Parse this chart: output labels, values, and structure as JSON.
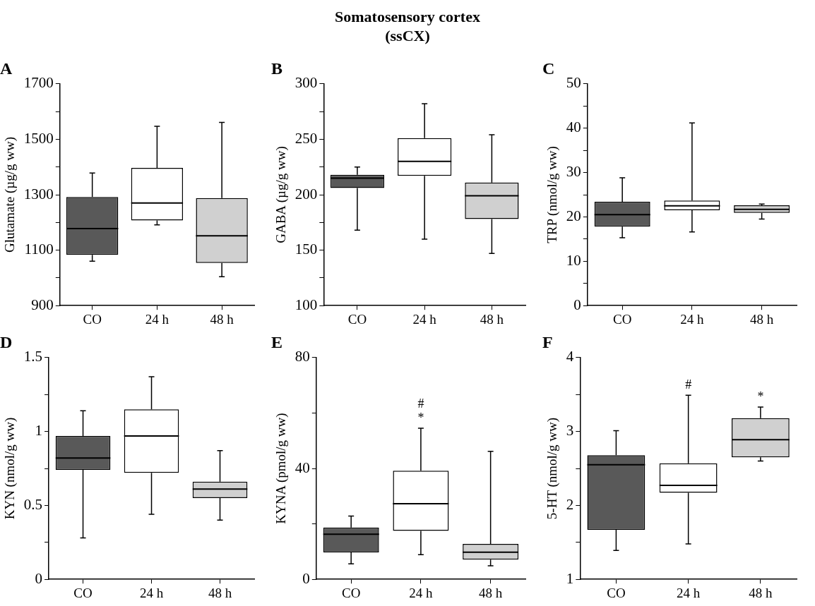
{
  "chart_data": [
    {
      "type": "other",
      "title": "Somatosensory cortex",
      "subtitle": "(ssCX)"
    },
    {
      "type": "box",
      "title": "A",
      "ylabel": "Glutamate (µg/g ww)",
      "categories": [
        "CO",
        "24 h",
        "48 h"
      ],
      "colors": [
        "#595959",
        "#ffffff",
        "#d0d0d0"
      ],
      "boxes": [
        {
          "low": 1060,
          "q1": 1083,
          "median": 1178,
          "q3": 1292,
          "high": 1378
        },
        {
          "low": 1191,
          "q1": 1207,
          "median": 1270,
          "q3": 1397,
          "high": 1547
        },
        {
          "low": 1004,
          "q1": 1054,
          "median": 1152,
          "q3": 1288,
          "high": 1561
        }
      ],
      "ylim": [
        900,
        1700
      ],
      "yticks": [
        900,
        {
          "value": 1000,
          "label": null
        },
        1100,
        {
          "value": 1200,
          "label": null
        },
        1300,
        {
          "value": 1400,
          "label": null
        },
        1500,
        {
          "value": 1600,
          "label": null
        },
        1700
      ]
    },
    {
      "type": "box",
      "title": "B",
      "ylabel": "GABA (µg/g ww)",
      "categories": [
        "CO",
        "24 h",
        "48 h"
      ],
      "colors": [
        "#595959",
        "#ffffff",
        "#d0d0d0"
      ],
      "boxes": [
        {
          "low": 168,
          "q1": 206,
          "median": 215,
          "q3": 218,
          "high": 225
        },
        {
          "low": 160,
          "q1": 217,
          "median": 230,
          "q3": 251,
          "high": 282
        },
        {
          "low": 147,
          "q1": 178,
          "median": 199,
          "q3": 211,
          "high": 254
        }
      ],
      "ylim": [
        100,
        300
      ],
      "yticks": [
        100,
        {
          "value": 125,
          "label": null
        },
        150,
        {
          "value": 175,
          "label": null
        },
        200,
        {
          "value": 225,
          "label": null
        },
        250,
        {
          "value": 275,
          "label": null
        },
        300
      ]
    },
    {
      "type": "box",
      "title": "C",
      "ylabel": "TRP (nmol/g ww)",
      "categories": [
        "CO",
        "24 h",
        "48 h"
      ],
      "colors": [
        "#595959",
        "#ffffff",
        "#d0d0d0"
      ],
      "boxes": [
        {
          "low": 15.3,
          "q1": 17.8,
          "median": 20.5,
          "q3": 23.4,
          "high": 28.8
        },
        {
          "low": 16.6,
          "q1": 21.5,
          "median": 22.5,
          "q3": 23.7,
          "high": 41.2
        },
        {
          "low": 19.5,
          "q1": 20.9,
          "median": 21.7,
          "q3": 22.6,
          "high": 22.9
        }
      ],
      "ylim": [
        0,
        50
      ],
      "yticks": [
        0,
        {
          "value": 5,
          "label": null
        },
        10,
        {
          "value": 15,
          "label": null
        },
        20,
        {
          "value": 25,
          "label": null
        },
        30,
        {
          "value": 35,
          "label": null
        },
        40,
        {
          "value": 45,
          "label": null
        },
        50
      ]
    },
    {
      "type": "box",
      "title": "D",
      "ylabel": "KYN (nmol/g ww)",
      "categories": [
        "CO",
        "24 h",
        "48 h"
      ],
      "colors": [
        "#595959",
        "#ffffff",
        "#d0d0d0"
      ],
      "boxes": [
        {
          "low": 0.28,
          "q1": 0.74,
          "median": 0.82,
          "q3": 0.97,
          "high": 1.14
        },
        {
          "low": 0.44,
          "q1": 0.72,
          "median": 0.97,
          "q3": 1.15,
          "high": 1.37
        },
        {
          "low": 0.4,
          "q1": 0.55,
          "median": 0.61,
          "q3": 0.66,
          "high": 0.87
        }
      ],
      "ylim": [
        0,
        1.5
      ],
      "yticks": [
        0,
        {
          "value": 0.25,
          "label": null
        },
        0.5,
        {
          "value": 0.75,
          "label": null
        },
        1,
        {
          "value": 1.25,
          "label": null
        },
        1.5
      ]
    },
    {
      "type": "box",
      "title": "E",
      "ylabel": "KYNA (pmol/g ww)",
      "categories": [
        "CO",
        "24 h",
        "48 h"
      ],
      "colors": [
        "#595959",
        "#ffffff",
        "#d0d0d0"
      ],
      "boxes": [
        {
          "low": 5.6,
          "q1": 9.7,
          "median": 16.3,
          "q3": 18.7,
          "high": 22.8
        },
        {
          "low": 8.9,
          "q1": 17.5,
          "median": 27.3,
          "q3": 39.2,
          "high": 54.5
        },
        {
          "low": 4.9,
          "q1": 7.1,
          "median": 9.8,
          "q3": 12.8,
          "high": 46.2
        }
      ],
      "ylim": [
        0,
        80
      ],
      "yticks": [
        0,
        {
          "value": 20,
          "label": null
        },
        40,
        {
          "value": 60,
          "label": null
        },
        80
      ],
      "annotations": [
        {
          "text": "*",
          "x": "24 h",
          "y": 54.5
        },
        {
          "text": "#",
          "x": "24 h",
          "y": 54.5
        }
      ]
    },
    {
      "type": "box",
      "title": "F",
      "ylabel": "5-HT (nmol/g ww)",
      "categories": [
        "CO",
        "24 h",
        "48 h"
      ],
      "colors": [
        "#595959",
        "#ffffff",
        "#d0d0d0"
      ],
      "boxes": [
        {
          "low": 1.39,
          "q1": 1.67,
          "median": 2.55,
          "q3": 2.68,
          "high": 3.01
        },
        {
          "low": 1.48,
          "q1": 2.17,
          "median": 2.27,
          "q3": 2.57,
          "high": 3.49
        },
        {
          "low": 2.6,
          "q1": 2.65,
          "median": 2.89,
          "q3": 3.18,
          "high": 3.33
        }
      ],
      "ylim": [
        1,
        4
      ],
      "yticks": [
        1,
        {
          "value": 1.5,
          "label": null
        },
        2,
        {
          "value": 2.5,
          "label": null
        },
        3,
        {
          "value": 3.5,
          "label": null
        },
        4
      ],
      "annotations": [
        {
          "text": "#",
          "x": "24 h",
          "y": 3.49
        },
        {
          "text": "*",
          "x": "48 h",
          "y": 3.33
        }
      ]
    }
  ]
}
